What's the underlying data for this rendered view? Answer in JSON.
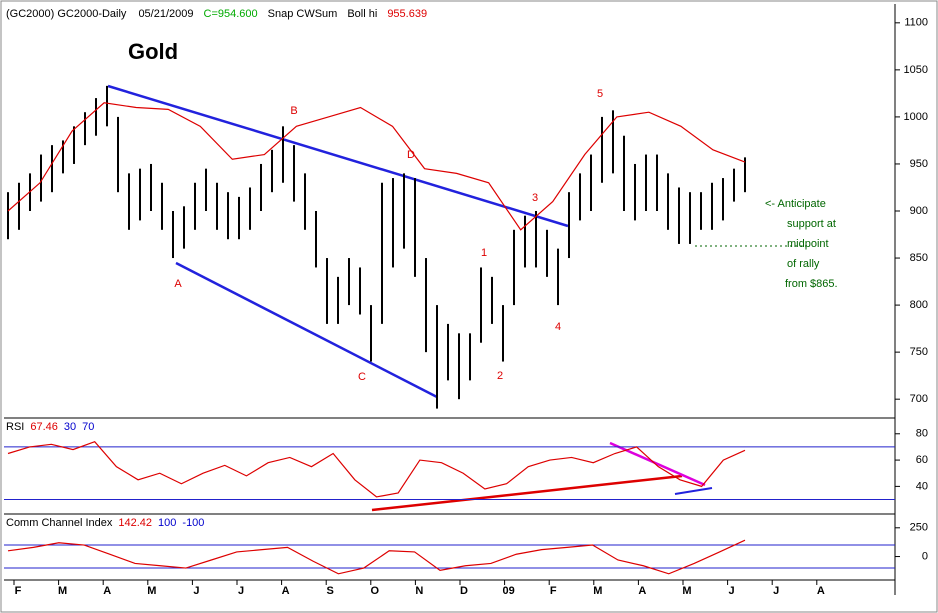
{
  "header": [
    {
      "text": "(GC2000) GC2000-Daily",
      "color": "#000000"
    },
    {
      "text": "05/21/2009",
      "color": "#000000"
    },
    {
      "text": "C=954.600",
      "color": "#00aa00"
    },
    {
      "text": "Snap CWSum",
      "color": "#000000"
    },
    {
      "text": "Boll hi",
      "color": "#000000"
    },
    {
      "text": "955.639",
      "color": "#dd0000"
    }
  ],
  "x_labels": [
    "F",
    "M",
    "A",
    "M",
    "J",
    "J",
    "A",
    "S",
    "O",
    "N",
    "D",
    "09",
    "F",
    "M",
    "A",
    "M",
    "J",
    "J",
    "A"
  ],
  "chart_data": [
    {
      "type": "range-bar",
      "title": "Gold",
      "color": "#000000",
      "high": [
        920,
        930,
        940,
        960,
        970,
        975,
        990,
        1005,
        1020,
        1033,
        1000,
        940,
        945,
        950,
        930,
        900,
        905,
        930,
        945,
        930,
        920,
        915,
        925,
        950,
        965,
        990,
        970,
        940,
        900,
        850,
        830,
        850,
        840,
        800,
        930,
        935,
        940,
        935,
        850,
        800,
        780,
        770,
        770,
        840,
        830,
        800,
        880,
        895,
        900,
        880,
        860,
        920,
        940,
        960,
        1000,
        1007,
        980,
        950,
        960,
        960,
        940,
        925,
        920,
        920,
        930,
        935,
        945,
        957
      ],
      "low": [
        870,
        880,
        900,
        910,
        920,
        940,
        950,
        970,
        980,
        990,
        920,
        880,
        890,
        900,
        880,
        850,
        860,
        880,
        900,
        880,
        870,
        870,
        880,
        900,
        920,
        930,
        910,
        880,
        840,
        780,
        780,
        800,
        790,
        740,
        780,
        840,
        860,
        830,
        750,
        690,
        720,
        700,
        720,
        760,
        780,
        740,
        800,
        840,
        840,
        830,
        800,
        850,
        890,
        900,
        930,
        940,
        900,
        890,
        900,
        900,
        880,
        865,
        865,
        880,
        880,
        890,
        910,
        920
      ],
      "boll_hi": {
        "name": "Boll hi",
        "color": "#dd0000",
        "values": [
          900,
          930,
          985,
          1015,
          1010,
          1008,
          990,
          955,
          960,
          990,
          1000,
          1010,
          990,
          945,
          940,
          930,
          880,
          910,
          960,
          1000,
          1005,
          990,
          965,
          952
        ]
      },
      "ylim": [
        680,
        1120
      ],
      "yticks": [
        700,
        750,
        800,
        850,
        900,
        950,
        1000,
        1050,
        1100
      ],
      "wave_labels": [
        "A",
        "B",
        "C",
        "D",
        "1",
        "2",
        "3",
        "4",
        "5"
      ],
      "note": [
        "<- Anticipate",
        "support at",
        "midpoint",
        "of rally",
        "from $865."
      ]
    },
    {
      "type": "line",
      "title": "RSI",
      "color": "#dd0000",
      "current": 67.46,
      "bands": [
        30,
        70
      ],
      "values": [
        65,
        70,
        72,
        68,
        74,
        55,
        45,
        50,
        42,
        50,
        56,
        48,
        58,
        62,
        55,
        65,
        45,
        32,
        35,
        60,
        58,
        50,
        38,
        42,
        55,
        60,
        62,
        58,
        65,
        70,
        55,
        45,
        40,
        60,
        67.46
      ],
      "ylim": [
        19,
        92
      ],
      "yticks": [
        40,
        60,
        80
      ]
    },
    {
      "type": "line",
      "title": "Comm Channel Index",
      "color": "#dd0000",
      "current": 142.42,
      "bands": [
        100,
        -100
      ],
      "values": [
        50,
        80,
        120,
        100,
        20,
        -60,
        -80,
        -100,
        -30,
        40,
        60,
        80,
        -40,
        -150,
        -100,
        50,
        40,
        -120,
        -80,
        -60,
        20,
        60,
        80,
        100,
        -30,
        -80,
        -150,
        -60,
        40,
        142.42
      ],
      "ylim": [
        -204,
        370
      ],
      "yticks": [
        0,
        250
      ]
    }
  ]
}
